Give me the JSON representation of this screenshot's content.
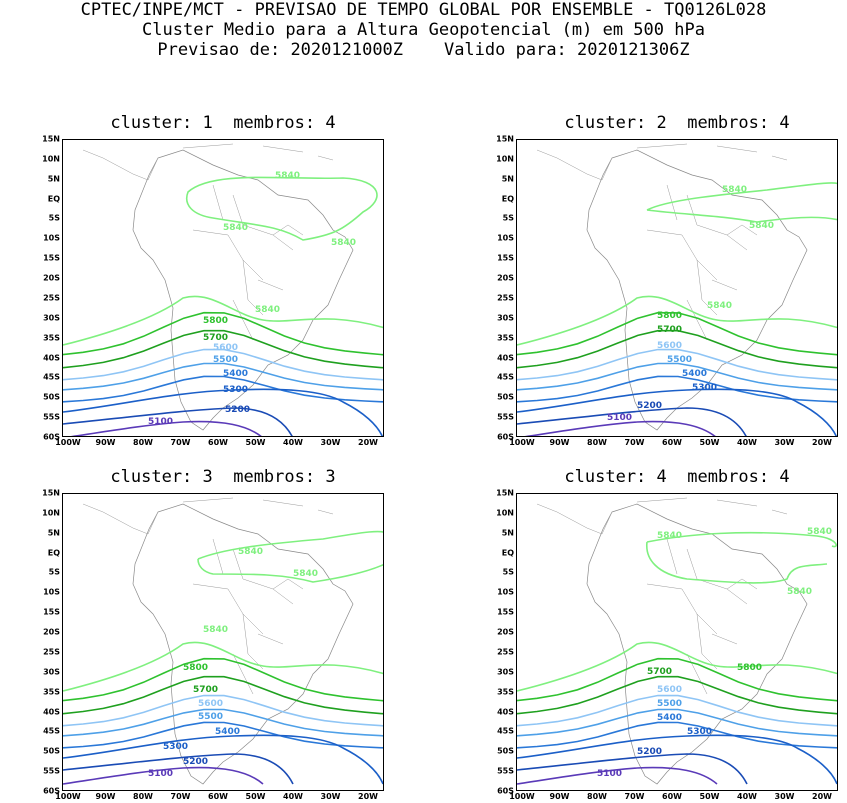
{
  "header": {
    "line1": "CPTEC/INPE/MCT - PREVISAO DE TEMPO GLOBAL POR ENSEMBLE - TQ0126L028",
    "line2": "Cluster Medio para a Altura Geopotencial (m) em 500 hPa",
    "line3": "Previsao de: 2020121000Z    Valido para: 2020121306Z"
  },
  "axes": {
    "lat_labels": [
      "15N",
      "10N",
      "5N",
      "EQ",
      "5S",
      "10S",
      "15S",
      "20S",
      "25S",
      "30S",
      "35S",
      "40S",
      "45S",
      "50S",
      "55S",
      "60S"
    ],
    "lon_labels": [
      "100W",
      "90W",
      "80W",
      "70W",
      "60W",
      "50W",
      "40W",
      "30W",
      "20W"
    ]
  },
  "contour_colors": {
    "5840": "#7ff07f",
    "5800": "#2fc22f",
    "5700": "#1fa01f",
    "5600": "#8fc5f5",
    "5500": "#4ea0e8",
    "5400": "#2a78d8",
    "5300": "#1b5fc8",
    "5200": "#1a4bb5",
    "5100": "#5a3ab8"
  },
  "panels": [
    {
      "title": "cluster: 1  membros: 4",
      "labels": [
        "5840",
        "5840",
        "5840",
        "5840",
        "5800",
        "5700",
        "5600",
        "5500",
        "5400",
        "5300",
        "5200",
        "5100"
      ]
    },
    {
      "title": "cluster: 2  membros: 4",
      "labels": [
        "5840",
        "5840",
        "5840",
        "5800",
        "5700",
        "5600",
        "5500",
        "5400",
        "5300",
        "5200",
        "5100"
      ]
    },
    {
      "title": "cluster: 3  membros: 3",
      "labels": [
        "5840",
        "5840",
        "5840",
        "5800",
        "5700",
        "5600",
        "5500",
        "5400",
        "5300",
        "5200",
        "5100"
      ]
    },
    {
      "title": "cluster: 4  membros: 4",
      "labels": [
        "5840",
        "5840",
        "5840",
        "5800",
        "5700",
        "5600",
        "5500",
        "5400",
        "5300",
        "5200",
        "5100"
      ]
    }
  ]
}
